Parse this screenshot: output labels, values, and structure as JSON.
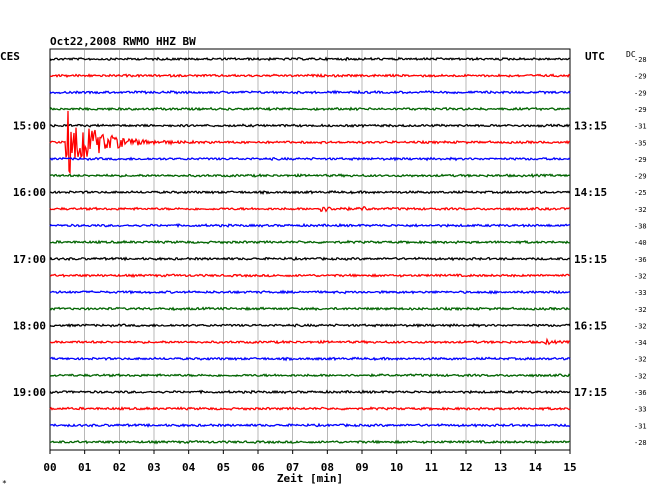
{
  "chart_data": {
    "type": "line",
    "title": "Oct22,2008   RWMO HHZ BW",
    "left_header": "CES",
    "right_header": "UTC",
    "dc_header": "DC",
    "xlabel": "Zeit [min]",
    "xlim": [
      0,
      15
    ],
    "x_ticks": [
      "00",
      "01",
      "02",
      "03",
      "04",
      "05",
      "06",
      "07",
      "08",
      "09",
      "10",
      "11",
      "12",
      "13",
      "14",
      "15"
    ],
    "left_time_labels": [
      "15:00",
      "16:00",
      "17:00",
      "18:00",
      "19:00"
    ],
    "right_time_labels": [
      "13:15",
      "14:15",
      "15:15",
      "16:15",
      "17:15"
    ],
    "time_label_traces": [
      4,
      8,
      12,
      16,
      20
    ],
    "grid": true,
    "trace_colors": [
      "#000000",
      "#ff0000",
      "#0000ff",
      "#006400"
    ],
    "dc_offsets": [
      -28,
      -29,
      -29,
      -29,
      -31,
      -35,
      -29,
      -29,
      -25,
      -32,
      -38,
      -40,
      -36,
      -32,
      -33,
      -32,
      -32,
      -34,
      -32,
      -32,
      -36,
      -33,
      -31,
      -28
    ],
    "events": [
      {
        "trace": 5,
        "minute": 0.45,
        "amplitude": 40,
        "decay": 0.7
      },
      {
        "trace": 9,
        "minute": 7.8,
        "amplitude": 5,
        "decay": 0.15
      },
      {
        "trace": 9,
        "minute": 8.3,
        "amplitude": 4,
        "decay": 0.12
      },
      {
        "trace": 9,
        "minute": 9.0,
        "amplitude": 3,
        "decay": 0.1
      },
      {
        "trace": 17,
        "minute": 14.3,
        "amplitude": 4,
        "decay": 0.1
      }
    ],
    "footnote": "*"
  }
}
